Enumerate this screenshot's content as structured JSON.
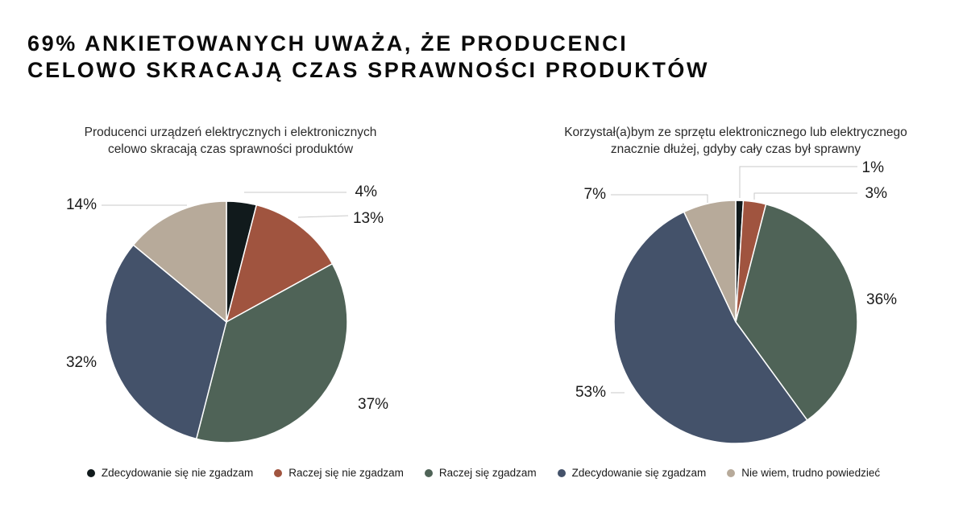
{
  "title": {
    "line1": "69% ANKIETOWANYCH UWAŻA, ŻE PRODUCENCI",
    "line2": "CELOWO SKRACAJĄ CZAS SPRAWNOŚCI PRODUKTÓW"
  },
  "colors": {
    "strongly_disagree": "#111a1c",
    "rather_disagree": "#a0543f",
    "rather_agree": "#4f6357",
    "strongly_agree": "#44526a",
    "dont_know": "#b7aa9a"
  },
  "legend": [
    {
      "label": "Zdecydowanie się nie zgadzam",
      "color": "#111a1c"
    },
    {
      "label": "Raczej się nie zgadzam",
      "color": "#a0543f"
    },
    {
      "label": "Raczej się zgadzam",
      "color": "#4f6357"
    },
    {
      "label": "Zdecydowanie się zgadzam",
      "color": "#44526a"
    },
    {
      "label": "Nie wiem, trudno powiedzieć",
      "color": "#b7aa9a"
    }
  ],
  "chart_data": [
    {
      "type": "pie",
      "title_line1": "Producenci urządzeń elektrycznych i elektronicznych",
      "title_line2": "celowo skracają czas sprawności produktów",
      "categories": [
        "Zdecydowanie się nie zgadzam",
        "Raczej się nie zgadzam",
        "Raczej się zgadzam",
        "Zdecydowanie się zgadzam",
        "Nie wiem, trudno powiedzieć"
      ],
      "values": [
        4,
        13,
        37,
        32,
        14
      ],
      "labels": [
        "4%",
        "13%",
        "37%",
        "32%",
        "14%"
      ]
    },
    {
      "type": "pie",
      "title_line1": "Korzystał(a)bym ze sprzętu elektronicznego lub elektrycznego",
      "title_line2": "znacznie dłużej, gdyby cały czas był sprawny",
      "categories": [
        "Zdecydowanie się nie zgadzam",
        "Raczej się nie zgadzam",
        "Raczej się zgadzam",
        "Zdecydowanie się zgadzam",
        "Nie wiem, trudno powiedzieć"
      ],
      "values": [
        1,
        3,
        36,
        53,
        7
      ],
      "labels": [
        "1%",
        "3%",
        "36%",
        "53%",
        "7%"
      ]
    }
  ]
}
